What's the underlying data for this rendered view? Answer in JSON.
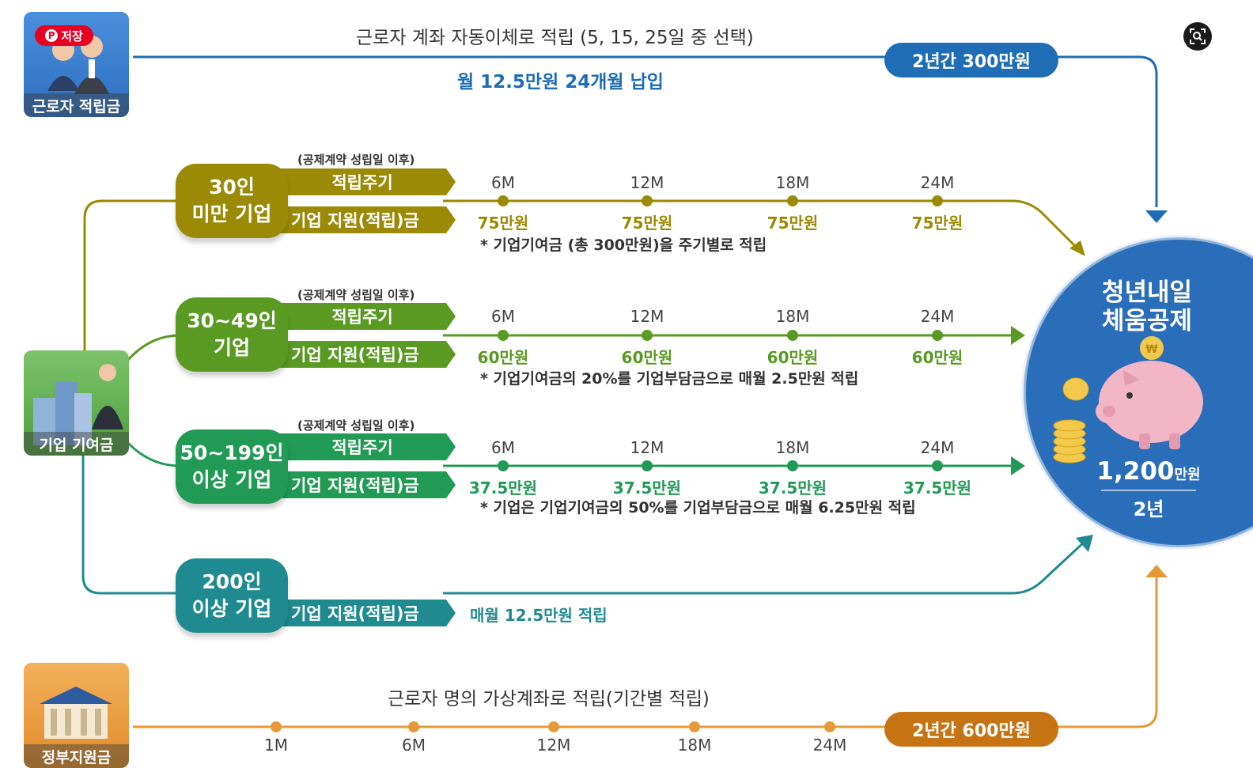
{
  "pinterest": {
    "save_label": "저장"
  },
  "worker": {
    "icon_caption": "근로자 적립금",
    "title": "근로자 계좌 자동이체로 적립 (5, 15, 25일 중 선택)",
    "subtitle": "월 12.5만원 24개월 납입",
    "total_pill": "2년간 300만원"
  },
  "company": {
    "icon_caption": "기업 기여금"
  },
  "tiers": [
    {
      "label_line1": "30인",
      "label_line2": "미만 기업",
      "note_top": "(공제계약 성립일 이후)",
      "cycle_label": "적립주기",
      "support_label": "기업 지원(적립)금",
      "ticks": [
        "6M",
        "12M",
        "18M",
        "24M"
      ],
      "amounts": [
        "75만원",
        "75만원",
        "75만원",
        "75만원"
      ],
      "footnote": "* 기업기여금 (총 300만원)을 주기별로 적립"
    },
    {
      "label_line1": "30~49인",
      "label_line2": "기업",
      "note_top": "(공제계약 성립일 이후)",
      "cycle_label": "적립주기",
      "support_label": "기업 지원(적립)금",
      "ticks": [
        "6M",
        "12M",
        "18M",
        "24M"
      ],
      "amounts": [
        "60만원",
        "60만원",
        "60만원",
        "60만원"
      ],
      "footnote": "* 기업기여금의 20%를 기업부담금으로 매월 2.5만원 적립"
    },
    {
      "label_line1": "50~199인",
      "label_line2": "이상 기업",
      "note_top": "(공제계약 성립일 이후)",
      "cycle_label": "적립주기",
      "support_label": "기업 지원(적립)금",
      "ticks": [
        "6M",
        "12M",
        "18M",
        "24M"
      ],
      "amounts": [
        "37.5만원",
        "37.5만원",
        "37.5만원",
        "37.5만원"
      ],
      "footnote": "* 기업은 기업기여금의 50%를 기업부담금으로 매월 6.25만원 적립"
    },
    {
      "label_line1": "200인",
      "label_line2": "이상 기업",
      "support_label": "기업 지원(적립)금",
      "monthly_note": "매월 12.5만원 적립"
    }
  ],
  "government": {
    "icon_caption": "정부지원금",
    "title": "근로자 명의 가상계좌로 적립(기간별 적립)",
    "ticks": [
      "1M",
      "6M",
      "12M",
      "18M",
      "24M"
    ],
    "total_pill": "2년간 600만원"
  },
  "result": {
    "title_line1": "청년내일",
    "title_line2": "체움공제",
    "amount": "1,200",
    "amount_unit": "만원",
    "period": "2년"
  },
  "colors": {
    "blue": "#1f6db5",
    "olive": "#9b8a05",
    "green": "#5a9a22",
    "dark_green": "#219a55",
    "teal": "#1f8a90",
    "orange": "#e59a3a",
    "circle": "#2a6db8"
  }
}
